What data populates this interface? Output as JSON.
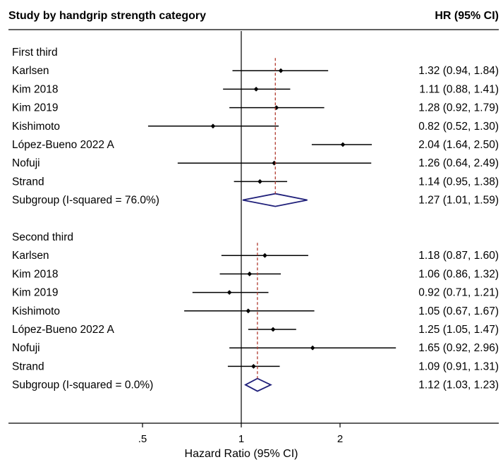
{
  "header": {
    "left_title": "Study by handgrip strength category",
    "right_title": "HR (95% CI)"
  },
  "colors": {
    "ci_line": "#000000",
    "point": "#000000",
    "diamond": "#1f1f7a",
    "pooled_line": "#b03a2e",
    "axis": "#000000"
  },
  "chart_data": {
    "type": "forest",
    "xlabel": "Hazard Ratio (95% CI)",
    "x_scale": "log",
    "x_ticks": [
      {
        "value": 0.5,
        "label": ".5"
      },
      {
        "value": 1,
        "label": "1"
      },
      {
        "value": 2,
        "label": "2"
      }
    ],
    "null_line": 1,
    "subgroups": [
      {
        "title": "First third",
        "pooled_line_hr": 1.27,
        "studies": [
          {
            "name": "Karlsen",
            "hr": 1.32,
            "lo": 0.94,
            "hi": 1.84,
            "ci_text": "1.32 (0.94, 1.84)"
          },
          {
            "name": "Kim 2018",
            "hr": 1.11,
            "lo": 0.88,
            "hi": 1.41,
            "ci_text": "1.11 (0.88, 1.41)"
          },
          {
            "name": "Kim 2019",
            "hr": 1.28,
            "lo": 0.92,
            "hi": 1.79,
            "ci_text": "1.28 (0.92, 1.79)"
          },
          {
            "name": "Kishimoto",
            "hr": 0.82,
            "lo": 0.52,
            "hi": 1.3,
            "ci_text": "0.82 (0.52, 1.30)"
          },
          {
            "name": "López-Bueno 2022 A",
            "hr": 2.04,
            "lo": 1.64,
            "hi": 2.5,
            "ci_text": "2.04 (1.64, 2.50)"
          },
          {
            "name": "Nofuji",
            "hr": 1.26,
            "lo": 0.64,
            "hi": 2.49,
            "ci_text": "1.26 (0.64, 2.49)"
          },
          {
            "name": "Strand",
            "hr": 1.14,
            "lo": 0.95,
            "hi": 1.38,
            "ci_text": "1.14 (0.95, 1.38)"
          }
        ],
        "summary": {
          "name": "Subgroup (I-squared = 76.0%)",
          "hr": 1.27,
          "lo": 1.01,
          "hi": 1.59,
          "ci_text": "1.27 (1.01, 1.59)"
        }
      },
      {
        "title": "Second third",
        "pooled_line_hr": 1.12,
        "studies": [
          {
            "name": "Karlsen",
            "hr": 1.18,
            "lo": 0.87,
            "hi": 1.6,
            "ci_text": "1.18 (0.87, 1.60)"
          },
          {
            "name": "Kim 2018",
            "hr": 1.06,
            "lo": 0.86,
            "hi": 1.32,
            "ci_text": "1.06 (0.86, 1.32)"
          },
          {
            "name": "Kim 2019",
            "hr": 0.92,
            "lo": 0.71,
            "hi": 1.21,
            "ci_text": "0.92 (0.71, 1.21)"
          },
          {
            "name": "Kishimoto",
            "hr": 1.05,
            "lo": 0.67,
            "hi": 1.67,
            "ci_text": "1.05 (0.67, 1.67)"
          },
          {
            "name": "López-Bueno 2022 A",
            "hr": 1.25,
            "lo": 1.05,
            "hi": 1.47,
            "ci_text": "1.25 (1.05, 1.47)"
          },
          {
            "name": "Nofuji",
            "hr": 1.65,
            "lo": 0.92,
            "hi": 2.96,
            "ci_text": "1.65 (0.92, 2.96)"
          },
          {
            "name": "Strand",
            "hr": 1.09,
            "lo": 0.91,
            "hi": 1.31,
            "ci_text": "1.09 (0.91, 1.31)"
          }
        ],
        "summary": {
          "name": "Subgroup (I-squared = 0.0%)",
          "hr": 1.12,
          "lo": 1.03,
          "hi": 1.23,
          "ci_text": "1.12 (1.03, 1.23)"
        }
      }
    ]
  }
}
